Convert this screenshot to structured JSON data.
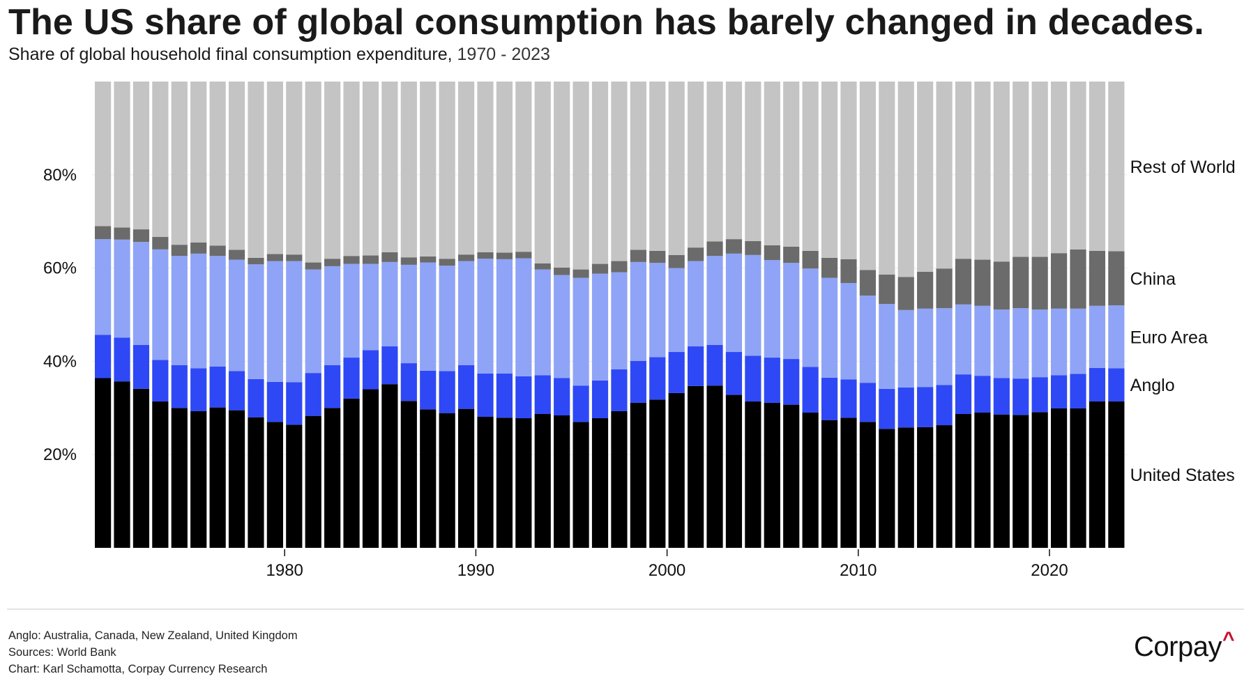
{
  "header": {
    "title": "The US share of global consumption has barely changed in decades.",
    "subtitle_main": "Share of global household final consumption expenditure,",
    "subtitle_range": "1970 - 2023"
  },
  "footer": {
    "notes": [
      "Anglo: Australia, Canada, New Zealand, United Kingdom",
      "Sources: World Bank",
      "Chart: Karl Schamotta, Corpay Currency Research"
    ],
    "logo_text": "Corpay",
    "logo_mark": "^",
    "logo_mark_color": "#c8102e"
  },
  "chart_data": {
    "type": "bar",
    "stacked": true,
    "title": "The US share of global consumption has barely changed in decades.",
    "subtitle": "Share of global household final consumption expenditure, 1970 - 2023",
    "xlabel": "",
    "ylabel": "",
    "ylim": [
      0,
      100
    ],
    "y_ticks": [
      20,
      40,
      60,
      80
    ],
    "y_tick_labels": [
      "20%",
      "40%",
      "60%",
      "80%"
    ],
    "x_ticks": [
      1980,
      1990,
      2000,
      2010,
      2020
    ],
    "x_tick_labels": [
      "1980",
      "1990",
      "2000",
      "2010",
      "2020"
    ],
    "grid": true,
    "legend": "direct labels right of last bar",
    "categories": [
      1970,
      1971,
      1972,
      1973,
      1974,
      1975,
      1976,
      1977,
      1978,
      1979,
      1980,
      1981,
      1982,
      1983,
      1984,
      1985,
      1986,
      1987,
      1988,
      1989,
      1990,
      1991,
      1992,
      1993,
      1994,
      1995,
      1996,
      1997,
      1998,
      1999,
      2000,
      2001,
      2002,
      2003,
      2004,
      2005,
      2006,
      2007,
      2008,
      2009,
      2010,
      2011,
      2012,
      2013,
      2014,
      2015,
      2016,
      2017,
      2018,
      2019,
      2020,
      2021,
      2022,
      2023
    ],
    "series": [
      {
        "name": "United States",
        "color": "#000000",
        "values": [
          36.4,
          35.7,
          34.1,
          31.4,
          30.0,
          29.3,
          30.1,
          29.5,
          28.0,
          27.0,
          26.4,
          28.3,
          30.0,
          32.0,
          34.0,
          35.1,
          31.5,
          29.7,
          28.9,
          29.8,
          28.1,
          27.9,
          27.8,
          28.7,
          28.4,
          27.0,
          27.8,
          29.3,
          31.1,
          31.8,
          33.2,
          34.7,
          34.8,
          32.8,
          31.4,
          31.1,
          30.7,
          29.0,
          27.4,
          27.9,
          27.0,
          25.5,
          25.8,
          25.9,
          26.3,
          28.7,
          29.0,
          28.6,
          28.5,
          29.1,
          29.9,
          29.9,
          31.4,
          31.4
        ]
      },
      {
        "name": "Anglo",
        "color": "#2f48f5",
        "values": [
          9.3,
          9.4,
          9.4,
          8.9,
          9.2,
          9.2,
          8.8,
          8.4,
          8.2,
          8.6,
          9.1,
          9.2,
          9.2,
          8.8,
          8.4,
          8.1,
          8.1,
          8.3,
          9.0,
          9.4,
          9.3,
          9.5,
          9.0,
          8.3,
          8.0,
          7.8,
          8.1,
          9.0,
          9.0,
          9.1,
          8.8,
          8.5,
          8.7,
          9.2,
          9.8,
          9.7,
          9.8,
          9.8,
          9.1,
          8.2,
          8.4,
          8.6,
          8.6,
          8.6,
          8.6,
          8.5,
          7.9,
          7.8,
          7.8,
          7.5,
          7.1,
          7.4,
          7.2,
          7.1
        ]
      },
      {
        "name": "Euro Area",
        "color": "#8fa4f6",
        "values": [
          20.5,
          21.0,
          22.1,
          23.7,
          23.4,
          24.6,
          23.7,
          23.9,
          24.6,
          25.9,
          26.0,
          22.2,
          21.2,
          20.1,
          18.5,
          18.1,
          21.1,
          23.2,
          22.6,
          22.3,
          24.6,
          24.5,
          25.3,
          22.7,
          22.1,
          23.1,
          22.9,
          20.8,
          21.2,
          20.2,
          18.0,
          18.3,
          19.1,
          21.1,
          21.6,
          20.9,
          20.6,
          21.1,
          21.4,
          20.7,
          18.7,
          18.2,
          16.6,
          16.8,
          16.5,
          15.0,
          15.0,
          14.7,
          15.1,
          14.5,
          14.3,
          14.0,
          13.3,
          13.5
        ]
      },
      {
        "name": "China",
        "color": "#6b6b6b",
        "values": [
          2.8,
          2.6,
          2.7,
          2.7,
          2.4,
          2.4,
          2.2,
          2.1,
          1.4,
          1.5,
          1.4,
          1.5,
          1.6,
          1.7,
          1.8,
          2.1,
          1.6,
          1.3,
          1.5,
          1.4,
          1.4,
          1.4,
          1.4,
          1.3,
          1.6,
          1.8,
          2.1,
          2.4,
          2.6,
          2.6,
          2.8,
          2.9,
          3.1,
          3.1,
          3.0,
          3.2,
          3.5,
          3.8,
          4.3,
          5.1,
          5.5,
          6.3,
          7.1,
          7.9,
          8.5,
          9.8,
          9.9,
          10.3,
          11.0,
          11.3,
          11.9,
          12.7,
          11.8,
          11.6
        ]
      },
      {
        "name": "Rest of World",
        "color": "#c4c4c4",
        "values": [
          31.0,
          31.3,
          31.7,
          33.3,
          35.0,
          34.5,
          35.2,
          36.1,
          37.8,
          37.0,
          37.1,
          38.8,
          38.0,
          37.4,
          37.3,
          36.6,
          37.7,
          37.5,
          38.0,
          37.1,
          36.6,
          36.7,
          36.5,
          39.0,
          39.9,
          40.3,
          39.1,
          38.5,
          36.1,
          36.3,
          37.2,
          35.6,
          34.3,
          33.8,
          34.2,
          35.1,
          35.4,
          36.3,
          37.8,
          38.1,
          40.4,
          41.4,
          41.9,
          40.8,
          40.1,
          38.0,
          38.2,
          38.6,
          37.6,
          37.6,
          36.8,
          36.0,
          36.3,
          36.4
        ]
      }
    ]
  }
}
